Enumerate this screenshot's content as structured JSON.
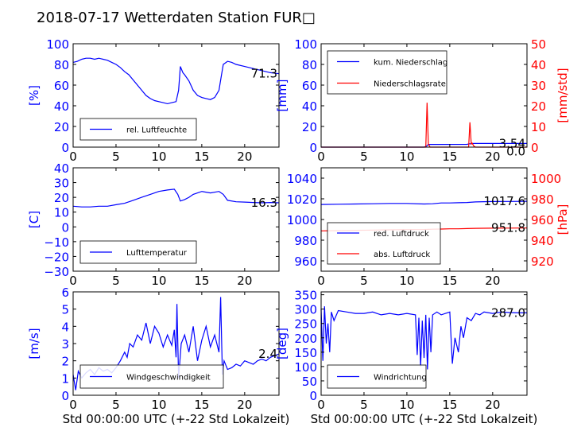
{
  "page_title": "2018-07-17 Wetterdaten Station FUR□",
  "chart_data": [
    {
      "type": "line",
      "id": "humidity",
      "xlabel": "",
      "ylabel": "[%]",
      "xlim": [
        0,
        24
      ],
      "ylim": [
        0,
        100
      ],
      "xticks": [
        0,
        5,
        10,
        15,
        20
      ],
      "yticks": [
        0,
        20,
        40,
        60,
        80,
        100
      ],
      "legend": "lower-left",
      "last_value": "71.3",
      "series": [
        {
          "name": "rel. Luftfeuchte",
          "color": "#0000ff",
          "axis": "left",
          "x": [
            0,
            0.5,
            1,
            1.5,
            2,
            2.5,
            3,
            3.5,
            4,
            4.5,
            5,
            5.5,
            6,
            6.5,
            7,
            7.5,
            8,
            8.5,
            9,
            9.5,
            10,
            10.5,
            11,
            11.5,
            12,
            12.3,
            12.5,
            12.8,
            13,
            13.5,
            14,
            14.5,
            15,
            15.5,
            16,
            16.5,
            17,
            17.3,
            17.5,
            18,
            18.5,
            19,
            20,
            21,
            22,
            23,
            24
          ],
          "y": [
            82,
            83,
            85,
            86,
            86,
            85,
            86,
            85,
            84,
            82,
            80,
            77,
            73,
            70,
            65,
            60,
            55,
            50,
            47,
            45,
            44,
            43,
            42,
            43,
            44,
            55,
            78,
            72,
            70,
            64,
            55,
            50,
            48,
            47,
            46,
            48,
            55,
            70,
            80,
            83,
            82,
            80,
            78,
            76,
            74,
            72,
            71
          ]
        }
      ]
    },
    {
      "type": "line",
      "id": "precip",
      "xlabel": "",
      "ylabel": "[mm]",
      "y2label": "[mm/std]",
      "xlim": [
        0,
        24
      ],
      "ylim": [
        0,
        100
      ],
      "y2lim": [
        0,
        50
      ],
      "xticks": [
        0,
        5,
        10,
        15,
        20
      ],
      "yticks": [
        0,
        20,
        40,
        60,
        80,
        100
      ],
      "y2ticks": [
        0,
        10,
        20,
        30,
        40,
        50
      ],
      "legend": "upper-left",
      "last_value": "3.54",
      "last_value2": "0.0",
      "series": [
        {
          "name": "kum. Niederschlag",
          "color": "#0000ff",
          "axis": "left",
          "x": [
            0,
            12,
            12.3,
            12.5,
            17,
            17.3,
            17.8,
            24
          ],
          "y": [
            0,
            0,
            1,
            2.6,
            2.7,
            3.2,
            3.5,
            3.54
          ]
        },
        {
          "name": "Niederschlagsrate",
          "color": "#ff0000",
          "axis": "right",
          "x": [
            0,
            12.2,
            12.35,
            12.5,
            12.7,
            17.2,
            17.35,
            17.5,
            17.6,
            17.8,
            18,
            24
          ],
          "y": [
            0,
            0,
            21.5,
            1.5,
            0,
            0,
            12,
            1.5,
            2,
            0.5,
            0,
            0
          ]
        }
      ]
    },
    {
      "type": "line",
      "id": "temperature",
      "xlabel": "",
      "ylabel": "[C]",
      "xlim": [
        0,
        24
      ],
      "ylim": [
        -30,
        40
      ],
      "xticks": [
        0,
        5,
        10,
        15,
        20
      ],
      "yticks": [
        -30,
        -20,
        -10,
        0,
        10,
        20,
        30,
        40
      ],
      "legend": "lower-left",
      "last_value": "16.3",
      "series": [
        {
          "name": "Lufttemperatur",
          "color": "#0000ff",
          "axis": "left",
          "x": [
            0,
            1,
            2,
            3,
            4,
            5,
            6,
            7,
            8,
            9,
            10,
            11,
            11.8,
            12.2,
            12.5,
            13,
            13.5,
            14,
            15,
            16,
            17,
            17.5,
            18,
            19,
            20,
            21,
            22,
            23,
            24
          ],
          "y": [
            14,
            13.5,
            13.5,
            14,
            14,
            15,
            16,
            18,
            20,
            22,
            24,
            25,
            25.5,
            22,
            17.5,
            18.5,
            20,
            22,
            24,
            23,
            24,
            22,
            18,
            17,
            16.8,
            16.5,
            16.3,
            16.5,
            16.3
          ]
        }
      ]
    },
    {
      "type": "line",
      "id": "pressure",
      "xlabel": "",
      "ylabel": "",
      "y2label": "[hPa]",
      "xlim": [
        0,
        24
      ],
      "ylim": [
        950,
        1050
      ],
      "y2lim": [
        910,
        1010
      ],
      "xticks": [
        0,
        5,
        10,
        15,
        20
      ],
      "yticks": [
        960,
        980,
        1000,
        1020,
        1040
      ],
      "y2ticks": [
        920,
        940,
        960,
        980,
        1000
      ],
      "legend": "lower-left",
      "last_value": "1017.6",
      "last_value2": "951.8",
      "series": [
        {
          "name": "red. Luftdruck",
          "color": "#0000ff",
          "axis": "left",
          "x": [
            0,
            2,
            4,
            6,
            8,
            10,
            12,
            13,
            14,
            15,
            16,
            17,
            18,
            19,
            20,
            22,
            24
          ],
          "y": [
            1014.5,
            1014.8,
            1015,
            1015.2,
            1015.5,
            1015.5,
            1015,
            1015.2,
            1016,
            1016,
            1016.2,
            1016.5,
            1017,
            1017.2,
            1017.4,
            1017.5,
            1017.6
          ]
        },
        {
          "name": "abs. Luftdruck",
          "color": "#ff0000",
          "axis": "right",
          "x": [
            0,
            2,
            4,
            6,
            8,
            10,
            12,
            13,
            14,
            15,
            16,
            17,
            18,
            20,
            22,
            24
          ],
          "y": [
            949,
            949.2,
            949.5,
            949.8,
            950,
            950.2,
            950.3,
            950.6,
            950.8,
            951,
            951,
            951.2,
            951.5,
            951.6,
            951.7,
            951.8
          ]
        }
      ]
    },
    {
      "type": "line",
      "id": "wind-speed",
      "xlabel": "Std 00:00:00 UTC (+-22 Std Lokalzeit)",
      "ylabel": "[m/s]",
      "xlim": [
        0,
        24
      ],
      "ylim": [
        0,
        6
      ],
      "xticks": [
        0,
        5,
        10,
        15,
        20
      ],
      "yticks": [
        0,
        1,
        2,
        3,
        4,
        5,
        6
      ],
      "legend": "lower-left",
      "last_value": "2.4",
      "series": [
        {
          "name": "Windgeschwindigkeit",
          "color": "#0000ff",
          "axis": "left",
          "x": [
            0,
            0.3,
            0.6,
            1,
            1.5,
            2,
            2.5,
            3,
            3.5,
            4,
            4.5,
            5,
            5.5,
            6,
            6.3,
            6.6,
            7,
            7.5,
            8,
            8.5,
            9,
            9.5,
            10,
            10.5,
            11,
            11.5,
            11.8,
            12,
            12.1,
            12.3,
            12.6,
            13,
            13.5,
            14,
            14.5,
            15,
            15.5,
            16,
            16.5,
            17,
            17.2,
            17.4,
            17.6,
            18,
            18.5,
            19,
            19.5,
            20,
            20.5,
            21,
            21.5,
            22,
            22.5,
            23,
            23.5,
            24
          ],
          "y": [
            1.2,
            0.3,
            1.4,
            1.0,
            1.3,
            1.5,
            1.2,
            1.6,
            1.4,
            1.5,
            1.3,
            1.6,
            2.0,
            2.5,
            2.2,
            3.0,
            2.8,
            3.5,
            3.2,
            4.2,
            3.0,
            4.0,
            3.6,
            2.8,
            3.5,
            2.9,
            3.8,
            2.2,
            5.3,
            1.0,
            3.0,
            3.5,
            2.5,
            4.0,
            2.0,
            3.2,
            4.0,
            2.8,
            3.5,
            2.5,
            5.7,
            1.2,
            2.0,
            1.5,
            1.6,
            1.8,
            1.7,
            2.0,
            1.9,
            1.8,
            2.0,
            2.1,
            2.0,
            2.2,
            2.3,
            2.4
          ]
        }
      ]
    },
    {
      "type": "line",
      "id": "wind-direction",
      "xlabel": "Std 00:00:00 UTC (+-22 Std Lokalzeit)",
      "ylabel": "[deg]",
      "xlim": [
        0,
        24
      ],
      "ylim": [
        0,
        360
      ],
      "xticks": [
        0,
        5,
        10,
        15,
        20
      ],
      "yticks": [
        0,
        50,
        100,
        150,
        200,
        250,
        300,
        350
      ],
      "legend": "lower-left",
      "last_value": "287.0",
      "series": [
        {
          "name": "Windrichtung",
          "color": "#0000ff",
          "axis": "left",
          "x": [
            0,
            0.2,
            0.4,
            0.6,
            0.8,
            1,
            1.2,
            1.5,
            2,
            3,
            4,
            5,
            6,
            7,
            8,
            9,
            10,
            11,
            11.2,
            11.4,
            11.6,
            11.8,
            12,
            12.2,
            12.4,
            12.6,
            12.8,
            13,
            13.5,
            14,
            14.5,
            15,
            15.3,
            15.6,
            16,
            16.3,
            16.6,
            17,
            17.5,
            18,
            18.5,
            19,
            20,
            21,
            22,
            23,
            24
          ],
          "y": [
            300,
            120,
            310,
            180,
            250,
            150,
            290,
            260,
            295,
            290,
            285,
            285,
            290,
            280,
            285,
            280,
            285,
            280,
            140,
            270,
            100,
            260,
            130,
            280,
            90,
            270,
            150,
            280,
            290,
            280,
            285,
            290,
            110,
            200,
            150,
            240,
            200,
            270,
            260,
            285,
            280,
            290,
            285,
            290,
            288,
            287,
            287
          ]
        }
      ]
    }
  ]
}
